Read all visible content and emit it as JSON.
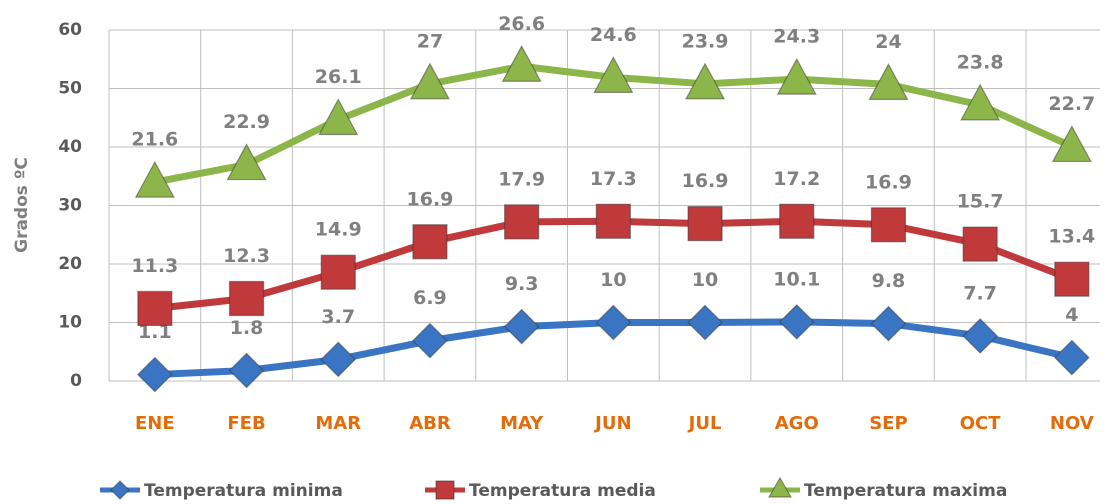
{
  "chart_data": {
    "type": "line",
    "stacked": true,
    "ylabel": "Grados ºC",
    "categories": [
      "ENE",
      "FEB",
      "MAR",
      "ABR",
      "MAY",
      "JUN",
      "JUL",
      "AGO",
      "SEP",
      "OCT",
      "NOV"
    ],
    "ylim": [
      0,
      60
    ],
    "yticks": [
      0,
      10,
      20,
      30,
      40,
      50,
      60
    ],
    "grid": true,
    "legend": "bottom",
    "series": [
      {
        "name": "Temperatura minima",
        "color": "#3a75c4",
        "marker": "diamond",
        "values": [
          1.1,
          1.8,
          3.7,
          6.9,
          9.3,
          10,
          10,
          10.1,
          9.8,
          7.7,
          4
        ]
      },
      {
        "name": "Temperatura media",
        "color": "#c0393b",
        "marker": "square",
        "values": [
          11.3,
          12.3,
          14.9,
          16.9,
          17.9,
          17.3,
          16.9,
          17.2,
          16.9,
          15.7,
          13.4
        ]
      },
      {
        "name": "Temperatura maxima",
        "color": "#8db64a",
        "marker": "triangle",
        "values": [
          21.6,
          22.9,
          26.1,
          27,
          26.6,
          24.6,
          23.9,
          24.3,
          24,
          23.8,
          22.7
        ]
      }
    ]
  }
}
